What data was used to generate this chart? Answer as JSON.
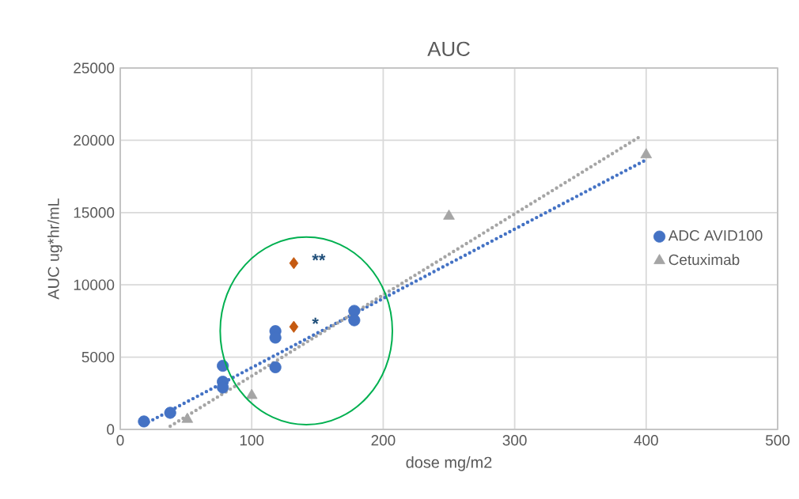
{
  "chart_data": {
    "type": "scatter",
    "title": "AUC",
    "xlabel": "dose mg/m2",
    "ylabel": "AUC ug*hr/mL",
    "xlim": [
      0,
      500
    ],
    "xticks": [
      0,
      100,
      200,
      300,
      400,
      500
    ],
    "ylim": [
      0,
      25000
    ],
    "yticks": [
      0,
      5000,
      10000,
      15000,
      20000,
      25000
    ],
    "grid": true,
    "legend": "right",
    "series": [
      {
        "name": "ADC AVID100",
        "marker": "circle",
        "color": "#4472c4",
        "x": [
          18,
          38,
          78,
          78,
          78,
          118,
          118,
          118,
          178,
          178
        ],
        "values": [
          550,
          1150,
          4400,
          3300,
          2900,
          6800,
          6350,
          4300,
          8200,
          7550
        ]
      },
      {
        "name": "Cetuximab",
        "marker": "triangle",
        "color": "#a5a5a5",
        "x": [
          51,
          100,
          250,
          400
        ],
        "values": [
          700,
          2350,
          14750,
          19000
        ]
      },
      {
        "marker": "diamond",
        "color": "#c55a11",
        "x": [
          132,
          132
        ],
        "values": [
          11500,
          7100
        ]
      },
      {
        "type": "line",
        "marker": "none",
        "line_style": "dotted",
        "color": "#4472c4",
        "x": [
          18,
          400
        ],
        "values": [
          340,
          18650
        ]
      },
      {
        "type": "line",
        "marker": "none",
        "line_style": "dotted",
        "color": "#a5a5a5",
        "x": [
          38,
          395
        ],
        "values": [
          220,
          20240
        ]
      }
    ],
    "annotations": [
      {
        "text": "**",
        "x": 132,
        "y": 11500
      },
      {
        "text": "*",
        "x": 132,
        "y": 7100
      }
    ]
  }
}
